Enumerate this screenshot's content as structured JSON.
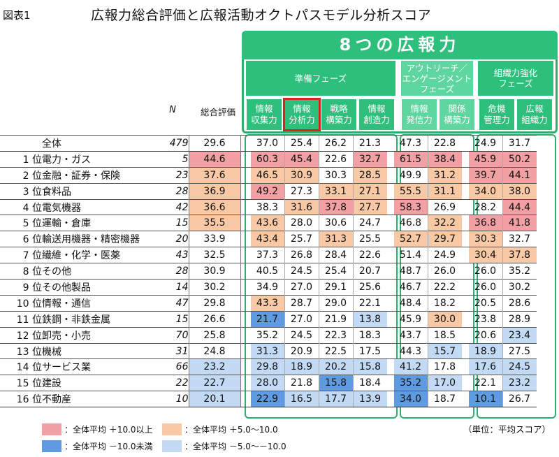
{
  "figure_label": "図表1",
  "title": "広報力総合評価と広報活動オクトパスモデル分析スコア",
  "banner": "8つの広報力",
  "phases": [
    "準備フェーズ",
    "アウトリーチ／\nエンゲージメント\nフェーズ",
    "組織力強化\nフェーズ"
  ],
  "sub_headers": [
    "情報\n収集力",
    "情報\n分析力",
    "戦略\n構築力",
    "情報\n創造力",
    "情報\n発信力",
    "関係\n構築力",
    "危機\n管理力",
    "広報\n組織力"
  ],
  "n_label": "N",
  "total_label": "総合評価",
  "rows": [
    {
      "rank": "",
      "name": "全体",
      "n": "479",
      "total": "29.6",
      "v": [
        "37.0",
        "25.4",
        "26.2",
        "21.3",
        "47.3",
        "22.8",
        "24.9",
        "31.7"
      ],
      "c": [
        "",
        "",
        "",
        "",
        "",
        "",
        "",
        ""
      ],
      "tc": ""
    },
    {
      "rank": "1 位",
      "name": "電力・ガス",
      "n": "5",
      "total": "44.6",
      "v": [
        "60.3",
        "45.4",
        "22.6",
        "32.7",
        "61.5",
        "38.4",
        "45.9",
        "50.2"
      ],
      "c": [
        "hp",
        "hp",
        "",
        "hp",
        "hp",
        "hp",
        "hp",
        "hp"
      ],
      "tc": "hp"
    },
    {
      "rank": "2 位",
      "name": "金融・証券・保険",
      "n": "23",
      "total": "37.6",
      "v": [
        "46.5",
        "30.9",
        "30.3",
        "28.5",
        "49.9",
        "31.2",
        "39.7",
        "44.1"
      ],
      "c": [
        "p",
        "p",
        "",
        "p",
        "",
        "p",
        "hp",
        "hp"
      ],
      "tc": "p"
    },
    {
      "rank": "3 位",
      "name": "食料品",
      "n": "28",
      "total": "36.9",
      "v": [
        "49.2",
        "27.3",
        "33.1",
        "27.1",
        "55.5",
        "31.1",
        "34.0",
        "38.0"
      ],
      "c": [
        "hp",
        "",
        "p",
        "p",
        "p",
        "p",
        "p",
        "p"
      ],
      "tc": "p"
    },
    {
      "rank": "4 位",
      "name": "電気機器",
      "n": "42",
      "total": "36.6",
      "v": [
        "38.3",
        "31.6",
        "37.8",
        "27.7",
        "58.3",
        "26.9",
        "28.2",
        "44.4"
      ],
      "c": [
        "",
        "p",
        "hp",
        "p",
        "hp",
        "",
        "",
        "hp"
      ],
      "tc": "p"
    },
    {
      "rank": "5 位",
      "name": "運輸・倉庫",
      "n": "15",
      "total": "35.5",
      "v": [
        "43.6",
        "28.0",
        "30.6",
        "24.7",
        "46.8",
        "32.2",
        "36.8",
        "41.8"
      ],
      "c": [
        "p",
        "",
        "",
        "",
        "",
        "p",
        "hp",
        "hp"
      ],
      "tc": "p"
    },
    {
      "rank": "6 位",
      "name": "輸送用機器・精密機器",
      "n": "20",
      "total": "33.9",
      "v": [
        "43.4",
        "25.7",
        "31.3",
        "25.5",
        "52.7",
        "29.7",
        "30.3",
        "32.7"
      ],
      "c": [
        "p",
        "",
        "p",
        "",
        "p",
        "p",
        "p",
        ""
      ],
      "tc": ""
    },
    {
      "rank": "7 位",
      "name": "繊維・化学・医薬",
      "n": "43",
      "total": "32.5",
      "v": [
        "37.3",
        "26.8",
        "28.4",
        "22.6",
        "51.4",
        "24.9",
        "30.4",
        "37.8"
      ],
      "c": [
        "",
        "",
        "",
        "",
        "",
        "",
        "p",
        "p"
      ],
      "tc": ""
    },
    {
      "rank": "8 位",
      "name": "その他",
      "n": "28",
      "total": "30.9",
      "v": [
        "40.5",
        "24.5",
        "25.4",
        "20.7",
        "48.7",
        "26.0",
        "26.0",
        "35.2"
      ],
      "c": [
        "",
        "",
        "",
        "",
        "",
        "",
        "",
        ""
      ],
      "tc": ""
    },
    {
      "rank": "9 位",
      "name": "その他製品",
      "n": "14",
      "total": "30.2",
      "v": [
        "34.9",
        "27.0",
        "29.1",
        "25.6",
        "46.7",
        "22.2",
        "26.0",
        "30.2"
      ],
      "c": [
        "",
        "",
        "",
        "",
        "",
        "",
        "",
        ""
      ],
      "tc": ""
    },
    {
      "rank": "10 位",
      "name": "情報・通信",
      "n": "47",
      "total": "29.8",
      "v": [
        "43.3",
        "28.7",
        "29.0",
        "22.1",
        "48.4",
        "18.2",
        "20.5",
        "28.6"
      ],
      "c": [
        "p",
        "",
        "",
        "",
        "",
        "",
        "",
        ""
      ],
      "tc": ""
    },
    {
      "rank": "11 位",
      "name": "鉄鋼・非鉄金属",
      "n": "15",
      "total": "26.6",
      "v": [
        "21.7",
        "27.0",
        "21.9",
        "13.8",
        "45.9",
        "30.0",
        "23.8",
        "28.9"
      ],
      "c": [
        "hn",
        "",
        "",
        "n",
        "",
        "p",
        "",
        ""
      ],
      "tc": ""
    },
    {
      "rank": "12 位",
      "name": "卸売・小売",
      "n": "70",
      "total": "25.8",
      "v": [
        "35.2",
        "24.5",
        "22.3",
        "18.3",
        "43.7",
        "18.5",
        "20.6",
        "23.4"
      ],
      "c": [
        "",
        "",
        "",
        "",
        "",
        "",
        "",
        "n"
      ],
      "tc": ""
    },
    {
      "rank": "13 位",
      "name": "機械",
      "n": "31",
      "total": "24.8",
      "v": [
        "31.3",
        "20.9",
        "22.5",
        "17.5",
        "44.3",
        "15.7",
        "18.9",
        "27.5"
      ],
      "c": [
        "n",
        "",
        "",
        "",
        "",
        "n",
        "n",
        ""
      ],
      "tc": ""
    },
    {
      "rank": "14 位",
      "name": "サービス業",
      "n": "66",
      "total": "23.2",
      "v": [
        "29.8",
        "18.9",
        "20.2",
        "15.8",
        "41.2",
        "17.8",
        "17.6",
        "24.5"
      ],
      "c": [
        "n",
        "n",
        "n",
        "n",
        "n",
        "",
        "n",
        "n"
      ],
      "tc": "n"
    },
    {
      "rank": "15 位",
      "name": "建設",
      "n": "22",
      "total": "22.7",
      "v": [
        "28.0",
        "21.8",
        "15.8",
        "18.4",
        "35.2",
        "17.0",
        "22.1",
        "23.2"
      ],
      "c": [
        "n",
        "",
        "hn",
        "",
        "hn",
        "n",
        "",
        "n"
      ],
      "tc": "n"
    },
    {
      "rank": "16 位",
      "name": "不動産",
      "n": "10",
      "total": "20.1",
      "v": [
        "22.9",
        "16.5",
        "17.7",
        "13.9",
        "34.0",
        "18.7",
        "10.1",
        "26.7"
      ],
      "c": [
        "hn",
        "n",
        "n",
        "n",
        "hn",
        "",
        "hn",
        ""
      ],
      "tc": "n"
    }
  ],
  "legend": [
    {
      "label": "：全体平均 ＋10.0以上",
      "color": "#f2a0a4"
    },
    {
      "label": "：全体平均 ＋5.0〜10.0",
      "color": "#f8c9a4"
    },
    {
      "label": "：全体平均 －10.0未満",
      "color": "#5e9be0"
    },
    {
      "label": "：全体平均 －5.0〜－10.0",
      "color": "#c3daf5"
    }
  ],
  "unit_note": "（単位：平均スコア）"
}
